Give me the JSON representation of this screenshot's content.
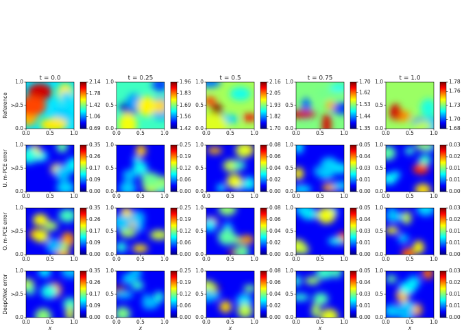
{
  "row_labels": [
    "Reference",
    "U. m-PCE error",
    "O. m-PCE error",
    "DeepONet error"
  ],
  "chart_data": [
    {
      "type": "heatmap",
      "title": "t = 0.0",
      "ylabel": "y",
      "colormap": "jet",
      "xlim": [
        0,
        1
      ],
      "ylim": [
        0,
        1
      ],
      "xticks": [
        {
          "value": 0,
          "label": "0.0"
        },
        {
          "value": 0.5,
          "label": "0.5"
        },
        {
          "value": 1,
          "label": "1.0"
        }
      ],
      "yticks": [
        {
          "value": 0,
          "label": "0.0"
        },
        {
          "value": 0.5,
          "label": "0.5"
        },
        {
          "value": 1,
          "label": "1.0"
        }
      ],
      "clim": [
        0.69,
        2.14
      ],
      "cticks": [
        0.69,
        1.06,
        1.42,
        1.78,
        2.14
      ]
    },
    {
      "type": "heatmap",
      "title": "t = 0.25",
      "colormap": "jet",
      "xlim": [
        0,
        1
      ],
      "ylim": [
        0,
        1
      ],
      "xticks": [
        {
          "value": 0,
          "label": "0.0"
        },
        {
          "value": 0.5,
          "label": "0.5"
        },
        {
          "value": 1,
          "label": "1.0"
        }
      ],
      "yticks": [
        {
          "value": 0,
          "label": "0.0"
        },
        {
          "value": 0.5,
          "label": "0.5"
        },
        {
          "value": 1,
          "label": "1.0"
        }
      ],
      "clim": [
        1.42,
        1.96
      ],
      "cticks": [
        1.42,
        1.56,
        1.69,
        1.83,
        1.96
      ]
    },
    {
      "type": "heatmap",
      "title": "t = 0.5",
      "colormap": "jet",
      "xlim": [
        0,
        1
      ],
      "ylim": [
        0,
        1
      ],
      "xticks": [
        {
          "value": 0,
          "label": "0.0"
        },
        {
          "value": 0.5,
          "label": "0.5"
        },
        {
          "value": 1,
          "label": "1.0"
        }
      ],
      "yticks": [
        {
          "value": 0,
          "label": "0.0"
        },
        {
          "value": 0.5,
          "label": "0.5"
        },
        {
          "value": 1,
          "label": "1.0"
        }
      ],
      "clim": [
        {
          "value": 1.7,
          "label": "1.70"
        },
        {
          "value": 2.16,
          "label": "2.16"
        }
      ],
      "cticks": [
        {
          "value": 1.7,
          "label": "1.70"
        },
        1.82,
        1.93,
        2.05,
        2.16
      ]
    },
    {
      "type": "heatmap",
      "title": "t = 0.75",
      "colormap": "jet",
      "xlim": [
        0,
        1
      ],
      "ylim": [
        0,
        1
      ],
      "xticks": [
        {
          "value": 0,
          "label": "0.0"
        },
        {
          "value": 0.5,
          "label": "0.5"
        },
        {
          "value": 1,
          "label": "1.0"
        }
      ],
      "yticks": [
        {
          "value": 0,
          "label": "0.0"
        },
        {
          "value": 0.5,
          "label": "0.5"
        },
        {
          "value": 1,
          "label": "1.0"
        }
      ],
      "clim": [
        1.35,
        1.7
      ],
      "cticks": [
        1.35,
        1.44,
        1.53,
        1.62,
        {
          "value": 1.7,
          "label": "1.70"
        }
      ]
    },
    {
      "type": "heatmap",
      "title": "t = 1.0",
      "colormap": "jet",
      "xlim": [
        0,
        1
      ],
      "ylim": [
        0,
        1
      ],
      "xticks": [
        {
          "value": 0,
          "label": "0.0"
        },
        {
          "value": 0.5,
          "label": "0.5"
        },
        {
          "value": 1,
          "label": "1.0"
        }
      ],
      "yticks": [
        {
          "value": 0,
          "label": "0.0"
        },
        {
          "value": 0.5,
          "label": "0.5"
        },
        {
          "value": 1,
          "label": "1.0"
        }
      ],
      "clim": [
        1.68,
        1.78
      ],
      "cticks": [
        1.68,
        {
          "value": 1.7,
          "label": "1.70"
        },
        1.73,
        1.76,
        1.78
      ]
    },
    {
      "type": "heatmap",
      "ylabel": "y",
      "colormap": "jet",
      "xlim": [
        0,
        1
      ],
      "ylim": [
        0,
        1
      ],
      "xticks": [
        {
          "value": 0,
          "label": "0.0"
        },
        {
          "value": 0.5,
          "label": "0.5"
        },
        {
          "value": 1,
          "label": "1.0"
        }
      ],
      "yticks": [
        {
          "value": 0,
          "label": "0.0"
        },
        {
          "value": 0.5,
          "label": "0.5"
        },
        {
          "value": 1,
          "label": "1.0"
        }
      ],
      "clim": [
        0,
        0.35
      ],
      "cticks": [
        {
          "value": 0,
          "label": "0.00"
        },
        {
          "value": 0.0875,
          "label": "0.09"
        },
        {
          "value": 0.175,
          "label": "0.17"
        },
        {
          "value": 0.2625,
          "label": "0.26"
        },
        0.35
      ]
    },
    {
      "type": "heatmap",
      "colormap": "jet",
      "xlim": [
        0,
        1
      ],
      "ylim": [
        0,
        1
      ],
      "xticks": [
        {
          "value": 0,
          "label": "0.0"
        },
        {
          "value": 0.5,
          "label": "0.5"
        },
        {
          "value": 1,
          "label": "1.0"
        }
      ],
      "yticks": [
        {
          "value": 0,
          "label": "0.0"
        },
        {
          "value": 0.5,
          "label": "0.5"
        },
        {
          "value": 1,
          "label": "1.0"
        }
      ],
      "clim": [
        0,
        0.25
      ],
      "cticks": [
        {
          "value": 0,
          "label": "0.00"
        },
        {
          "value": 0.0625,
          "label": "0.06"
        },
        {
          "value": 0.125,
          "label": "0.12"
        },
        {
          "value": 0.1875,
          "label": "0.19"
        },
        0.25
      ]
    },
    {
      "type": "heatmap",
      "colormap": "jet",
      "xlim": [
        0,
        1
      ],
      "ylim": [
        0,
        1
      ],
      "xticks": [
        {
          "value": 0,
          "label": "0.0"
        },
        {
          "value": 0.5,
          "label": "0.5"
        },
        {
          "value": 1,
          "label": "1.0"
        }
      ],
      "yticks": [
        {
          "value": 0,
          "label": "0.0"
        },
        {
          "value": 0.5,
          "label": "0.5"
        },
        {
          "value": 1,
          "label": "1.0"
        }
      ],
      "clim": [
        0,
        0.08
      ],
      "cticks": [
        {
          "value": 0,
          "label": "0.00"
        },
        0.02,
        0.04,
        0.06,
        0.08
      ]
    },
    {
      "type": "heatmap",
      "colormap": "jet",
      "xlim": [
        0,
        1
      ],
      "ylim": [
        0,
        1
      ],
      "xticks": [
        {
          "value": 0,
          "label": "0.0"
        },
        {
          "value": 0.5,
          "label": "0.5"
        },
        {
          "value": 1,
          "label": "1.0"
        }
      ],
      "yticks": [
        {
          "value": 0,
          "label": "0.0"
        },
        {
          "value": 0.5,
          "label": "0.5"
        },
        {
          "value": 1,
          "label": "1.0"
        }
      ],
      "clim": [
        0,
        0.05
      ],
      "cticks": [
        {
          "value": 0,
          "label": "0.00"
        },
        {
          "value": 0.0125,
          "label": "0.01"
        },
        {
          "value": 0.025,
          "label": "0.03"
        },
        {
          "value": 0.0375,
          "label": "0.04"
        },
        0.05
      ]
    },
    {
      "type": "heatmap",
      "colormap": "jet",
      "xlim": [
        0,
        1
      ],
      "ylim": [
        0,
        1
      ],
      "xticks": [
        {
          "value": 0,
          "label": "0.0"
        },
        {
          "value": 0.5,
          "label": "0.5"
        },
        {
          "value": 1,
          "label": "1.0"
        }
      ],
      "yticks": [
        {
          "value": 0,
          "label": "0.0"
        },
        {
          "value": 0.5,
          "label": "0.5"
        },
        {
          "value": 1,
          "label": "1.0"
        }
      ],
      "clim": [
        0,
        0.03
      ],
      "cticks": [
        {
          "value": 0,
          "label": "0.00"
        },
        {
          "value": 0.0075,
          "label": "0.01"
        },
        {
          "value": 0.015,
          "label": "0.01"
        },
        {
          "value": 0.0225,
          "label": "0.02"
        },
        0.03
      ]
    },
    {
      "type": "heatmap",
      "ylabel": "y",
      "colormap": "jet",
      "xlim": [
        0,
        1
      ],
      "ylim": [
        0,
        1
      ],
      "xticks": [
        {
          "value": 0,
          "label": "0.0"
        },
        {
          "value": 0.5,
          "label": "0.5"
        },
        {
          "value": 1,
          "label": "1.0"
        }
      ],
      "yticks": [
        {
          "value": 0,
          "label": "0.0"
        },
        {
          "value": 0.5,
          "label": "0.5"
        },
        {
          "value": 1,
          "label": "1.0"
        }
      ],
      "clim": [
        0,
        0.35
      ],
      "cticks": [
        {
          "value": 0,
          "label": "0.00"
        },
        {
          "value": 0.0875,
          "label": "0.09"
        },
        {
          "value": 0.175,
          "label": "0.17"
        },
        {
          "value": 0.2625,
          "label": "0.26"
        },
        0.35
      ]
    },
    {
      "type": "heatmap",
      "colormap": "jet",
      "xlim": [
        0,
        1
      ],
      "ylim": [
        0,
        1
      ],
      "xticks": [
        {
          "value": 0,
          "label": "0.0"
        },
        {
          "value": 0.5,
          "label": "0.5"
        },
        {
          "value": 1,
          "label": "1.0"
        }
      ],
      "yticks": [
        {
          "value": 0,
          "label": "0.0"
        },
        {
          "value": 0.5,
          "label": "0.5"
        },
        {
          "value": 1,
          "label": "1.0"
        }
      ],
      "clim": [
        0,
        0.25
      ],
      "cticks": [
        {
          "value": 0,
          "label": "0.00"
        },
        {
          "value": 0.0625,
          "label": "0.06"
        },
        {
          "value": 0.125,
          "label": "0.12"
        },
        {
          "value": 0.1875,
          "label": "0.19"
        },
        0.25
      ]
    },
    {
      "type": "heatmap",
      "colormap": "jet",
      "xlim": [
        0,
        1
      ],
      "ylim": [
        0,
        1
      ],
      "xticks": [
        {
          "value": 0,
          "label": "0.0"
        },
        {
          "value": 0.5,
          "label": "0.5"
        },
        {
          "value": 1,
          "label": "1.0"
        }
      ],
      "yticks": [
        {
          "value": 0,
          "label": "0.0"
        },
        {
          "value": 0.5,
          "label": "0.5"
        },
        {
          "value": 1,
          "label": "1.0"
        }
      ],
      "clim": [
        0,
        0.08
      ],
      "cticks": [
        {
          "value": 0,
          "label": "0.00"
        },
        0.02,
        0.04,
        0.06,
        0.08
      ]
    },
    {
      "type": "heatmap",
      "colormap": "jet",
      "xlim": [
        0,
        1
      ],
      "ylim": [
        0,
        1
      ],
      "xticks": [
        {
          "value": 0,
          "label": "0.0"
        },
        {
          "value": 0.5,
          "label": "0.5"
        },
        {
          "value": 1,
          "label": "1.0"
        }
      ],
      "yticks": [
        {
          "value": 0,
          "label": "0.0"
        },
        {
          "value": 0.5,
          "label": "0.5"
        },
        {
          "value": 1,
          "label": "1.0"
        }
      ],
      "clim": [
        0,
        0.05
      ],
      "cticks": [
        {
          "value": 0,
          "label": "0.00"
        },
        {
          "value": 0.0125,
          "label": "0.01"
        },
        {
          "value": 0.025,
          "label": "0.03"
        },
        {
          "value": 0.0375,
          "label": "0.04"
        },
        0.05
      ]
    },
    {
      "type": "heatmap",
      "colormap": "jet",
      "xlim": [
        0,
        1
      ],
      "ylim": [
        0,
        1
      ],
      "xticks": [
        {
          "value": 0,
          "label": "0.0"
        },
        {
          "value": 0.5,
          "label": "0.5"
        },
        {
          "value": 1,
          "label": "1.0"
        }
      ],
      "yticks": [
        {
          "value": 0,
          "label": "0.0"
        },
        {
          "value": 0.5,
          "label": "0.5"
        },
        {
          "value": 1,
          "label": "1.0"
        }
      ],
      "clim": [
        0,
        0.03
      ],
      "cticks": [
        {
          "value": 0,
          "label": "0.00"
        },
        {
          "value": 0.0075,
          "label": "0.01"
        },
        {
          "value": 0.015,
          "label": "0.01"
        },
        {
          "value": 0.0225,
          "label": "0.02"
        },
        0.03
      ]
    },
    {
      "type": "heatmap",
      "xlabel": "x",
      "ylabel": "y",
      "colormap": "jet",
      "xlim": [
        0,
        1
      ],
      "ylim": [
        0,
        1
      ],
      "xticks": [
        {
          "value": 0,
          "label": "0.0"
        },
        {
          "value": 0.5,
          "label": "0.5"
        },
        {
          "value": 1,
          "label": "1.0"
        }
      ],
      "yticks": [
        {
          "value": 0,
          "label": "0.0"
        },
        {
          "value": 0.5,
          "label": "0.5"
        },
        {
          "value": 1,
          "label": "1.0"
        }
      ],
      "clim": [
        0,
        0.35
      ],
      "cticks": [
        {
          "value": 0,
          "label": "0.00"
        },
        {
          "value": 0.0875,
          "label": "0.09"
        },
        {
          "value": 0.175,
          "label": "0.17"
        },
        {
          "value": 0.2625,
          "label": "0.26"
        },
        0.35
      ]
    },
    {
      "type": "heatmap",
      "xlabel": "x",
      "colormap": "jet",
      "xlim": [
        0,
        1
      ],
      "ylim": [
        0,
        1
      ],
      "xticks": [
        {
          "value": 0,
          "label": "0.0"
        },
        {
          "value": 0.5,
          "label": "0.5"
        },
        {
          "value": 1,
          "label": "1.0"
        }
      ],
      "yticks": [
        {
          "value": 0,
          "label": "0.0"
        },
        {
          "value": 0.5,
          "label": "0.5"
        },
        {
          "value": 1,
          "label": "1.0"
        }
      ],
      "clim": [
        0,
        0.25
      ],
      "cticks": [
        {
          "value": 0,
          "label": "0.00"
        },
        {
          "value": 0.0625,
          "label": "0.06"
        },
        {
          "value": 0.125,
          "label": "0.12"
        },
        {
          "value": 0.1875,
          "label": "0.19"
        },
        0.25
      ]
    },
    {
      "type": "heatmap",
      "xlabel": "x",
      "colormap": "jet",
      "xlim": [
        0,
        1
      ],
      "ylim": [
        0,
        1
      ],
      "xticks": [
        {
          "value": 0,
          "label": "0.0"
        },
        {
          "value": 0.5,
          "label": "0.5"
        },
        {
          "value": 1,
          "label": "1.0"
        }
      ],
      "yticks": [
        {
          "value": 0,
          "label": "0.0"
        },
        {
          "value": 0.5,
          "label": "0.5"
        },
        {
          "value": 1,
          "label": "1.0"
        }
      ],
      "clim": [
        0,
        0.08
      ],
      "cticks": [
        {
          "value": 0,
          "label": "0.00"
        },
        0.02,
        0.04,
        0.06,
        0.08
      ]
    },
    {
      "type": "heatmap",
      "xlabel": "x",
      "colormap": "jet",
      "xlim": [
        0,
        1
      ],
      "ylim": [
        0,
        1
      ],
      "xticks": [
        {
          "value": 0,
          "label": "0.0"
        },
        {
          "value": 0.5,
          "label": "0.5"
        },
        {
          "value": 1,
          "label": "1.0"
        }
      ],
      "yticks": [
        {
          "value": 0,
          "label": "0.0"
        },
        {
          "value": 0.5,
          "label": "0.5"
        },
        {
          "value": 1,
          "label": "1.0"
        }
      ],
      "clim": [
        0,
        0.05
      ],
      "cticks": [
        {
          "value": 0,
          "label": "0.00"
        },
        {
          "value": 0.0125,
          "label": "0.01"
        },
        {
          "value": 0.025,
          "label": "0.03"
        },
        {
          "value": 0.0375,
          "label": "0.04"
        },
        0.05
      ]
    },
    {
      "type": "heatmap",
      "xlabel": "x",
      "colormap": "jet",
      "xlim": [
        0,
        1
      ],
      "ylim": [
        0,
        1
      ],
      "xticks": [
        {
          "value": 0,
          "label": "0.0"
        },
        {
          "value": 0.5,
          "label": "0.5"
        },
        {
          "value": 1,
          "label": "1.0"
        }
      ],
      "yticks": [
        {
          "value": 0,
          "label": "0.0"
        },
        {
          "value": 0.5,
          "label": "0.5"
        },
        {
          "value": 1,
          "label": "1.0"
        }
      ],
      "clim": [
        0,
        0.03
      ],
      "cticks": [
        {
          "value": 0,
          "label": "0.00"
        },
        {
          "value": 0.0075,
          "label": "0.01"
        },
        {
          "value": 0.015,
          "label": "0.01"
        },
        {
          "value": 0.0225,
          "label": "0.02"
        },
        0.03
      ]
    }
  ]
}
